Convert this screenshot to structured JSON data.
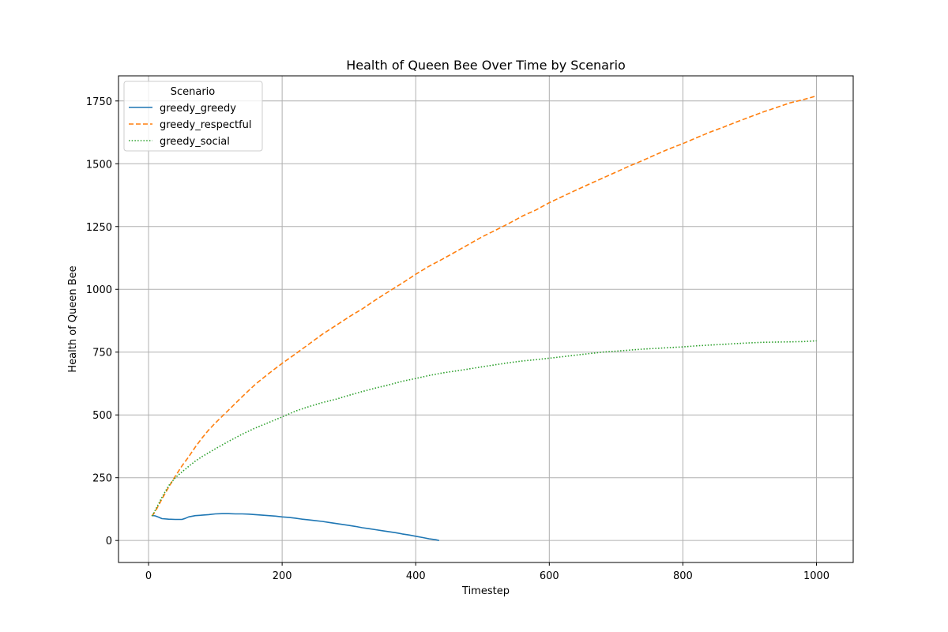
{
  "chart_data": {
    "type": "line",
    "title": "Health of Queen Bee Over Time by Scenario",
    "xlabel": "Timestep",
    "ylabel": "Health of Queen Bee",
    "xlim": [
      -45,
      1055
    ],
    "ylim": [
      -87.5,
      1850
    ],
    "xticks": [
      0,
      200,
      400,
      600,
      800,
      1000
    ],
    "yticks": [
      0,
      250,
      500,
      750,
      1000,
      1250,
      1500,
      1750
    ],
    "grid": true,
    "legend": {
      "title": "Scenario",
      "position": "top-left"
    },
    "series": [
      {
        "name": "greedy_greedy",
        "color": "#1f77b4",
        "style": "solid",
        "x": [
          5,
          10,
          15,
          20,
          30,
          40,
          50,
          55,
          60,
          70,
          80,
          90,
          100,
          110,
          120,
          130,
          140,
          150,
          160,
          170,
          180,
          190,
          200,
          210,
          220,
          230,
          240,
          250,
          260,
          270,
          280,
          290,
          300,
          310,
          320,
          330,
          340,
          350,
          360,
          370,
          380,
          390,
          400,
          410,
          420,
          430,
          435
        ],
        "y": [
          100,
          98,
          93,
          87,
          85,
          84,
          84,
          88,
          94,
          99,
          101,
          103,
          106,
          107,
          107,
          106,
          106,
          105,
          103,
          101,
          99,
          97,
          94,
          92,
          89,
          85,
          82,
          79,
          76,
          72,
          68,
          64,
          60,
          56,
          51,
          47,
          43,
          39,
          35,
          31,
          26,
          22,
          17,
          12,
          7,
          3,
          0
        ]
      },
      {
        "name": "greedy_respectful",
        "color": "#ff7f0e",
        "style": "dashed",
        "x": [
          5,
          10,
          20,
          30,
          40,
          50,
          60,
          70,
          80,
          90,
          100,
          120,
          140,
          160,
          180,
          200,
          220,
          240,
          260,
          280,
          300,
          320,
          340,
          360,
          380,
          400,
          420,
          440,
          460,
          480,
          500,
          520,
          540,
          560,
          580,
          600,
          620,
          640,
          660,
          680,
          700,
          720,
          740,
          760,
          780,
          800,
          820,
          840,
          860,
          880,
          900,
          920,
          940,
          960,
          980,
          1000
        ],
        "y": [
          97,
          115,
          165,
          212,
          256,
          297,
          333,
          372,
          408,
          440,
          468,
          520,
          572,
          622,
          665,
          705,
          743,
          782,
          821,
          855,
          890,
          922,
          958,
          992,
          1025,
          1060,
          1092,
          1120,
          1150,
          1180,
          1210,
          1236,
          1263,
          1292,
          1316,
          1345,
          1370,
          1395,
          1419,
          1443,
          1467,
          1491,
          1513,
          1537,
          1560,
          1580,
          1603,
          1625,
          1645,
          1666,
          1686,
          1706,
          1724,
          1742,
          1755,
          1770
        ]
      },
      {
        "name": "greedy_social",
        "color": "#2ca02c",
        "style": "dotted",
        "x": [
          5,
          10,
          20,
          30,
          40,
          50,
          60,
          70,
          80,
          90,
          100,
          120,
          140,
          160,
          180,
          200,
          220,
          240,
          260,
          280,
          300,
          320,
          340,
          360,
          380,
          400,
          420,
          440,
          460,
          480,
          500,
          520,
          540,
          560,
          580,
          600,
          620,
          640,
          660,
          680,
          700,
          720,
          740,
          760,
          780,
          800,
          820,
          840,
          860,
          880,
          900,
          920,
          940,
          960,
          980,
          1000
        ],
        "y": [
          97,
          120,
          172,
          218,
          250,
          273,
          295,
          316,
          334,
          349,
          365,
          395,
          423,
          448,
          470,
          492,
          515,
          533,
          549,
          562,
          578,
          593,
          607,
          620,
          634,
          645,
          657,
          667,
          675,
          683,
          692,
          700,
          708,
          715,
          720,
          726,
          732,
          738,
          744,
          750,
          754,
          758,
          762,
          765,
          768,
          771,
          775,
          778,
          781,
          784,
          787,
          789,
          790,
          791,
          792,
          795
        ]
      }
    ]
  }
}
